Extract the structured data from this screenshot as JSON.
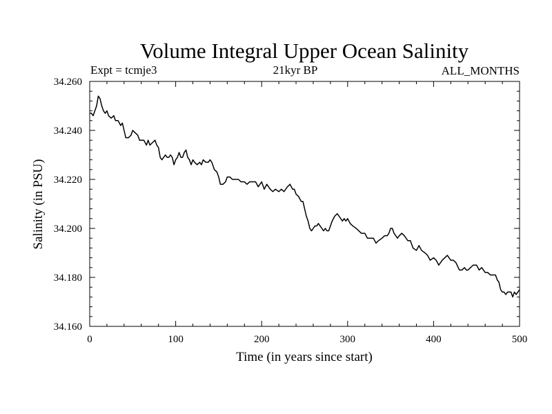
{
  "chart_data": {
    "type": "line",
    "title": "Volume Integral Upper Ocean Salinity",
    "subtitle_left": "Expt = tcmje3",
    "subtitle_center": "21kyr BP",
    "subtitle_right": "ALL_MONTHS",
    "xlabel": "Time (in years since start)",
    "ylabel": "Salinity (in PSU)",
    "xlim": [
      0,
      500
    ],
    "ylim": [
      34.16,
      34.26
    ],
    "xticks": [
      0,
      100,
      200,
      300,
      400,
      500
    ],
    "xtick_labels": [
      "0",
      "100",
      "200",
      "300",
      "400",
      "500"
    ],
    "yticks": [
      34.16,
      34.18,
      34.2,
      34.22,
      34.24,
      34.26
    ],
    "ytick_labels": [
      "34.160",
      "34.180",
      "34.200",
      "34.220",
      "34.240",
      "34.260"
    ],
    "grid": false,
    "line_color": "#000000",
    "series": [
      {
        "x": [
          0,
          2,
          4,
          6,
          8,
          10,
          12,
          14,
          16,
          18,
          20,
          22,
          25,
          28,
          30,
          33,
          36,
          38,
          40,
          42,
          45,
          48,
          50,
          53,
          56,
          58,
          60,
          63,
          66,
          68,
          70,
          73,
          76,
          78,
          80,
          82,
          84,
          86,
          88,
          90,
          92,
          94,
          96,
          98,
          100,
          102,
          104,
          106,
          108,
          110,
          112,
          114,
          116,
          118,
          120,
          122,
          125,
          128,
          130,
          132,
          135,
          138,
          140,
          142,
          145,
          148,
          150,
          152,
          155,
          158,
          160,
          163,
          166,
          170,
          173,
          176,
          180,
          183,
          186,
          190,
          193,
          196,
          200,
          203,
          206,
          210,
          213,
          216,
          220,
          223,
          226,
          230,
          233,
          236,
          238,
          240,
          243,
          246,
          248,
          250,
          252,
          254,
          256,
          258,
          260,
          262,
          264,
          266,
          268,
          270,
          272,
          274,
          276,
          278,
          280,
          282,
          285,
          288,
          290,
          292,
          294,
          296,
          298,
          300,
          303,
          306,
          310,
          313,
          316,
          320,
          323,
          326,
          330,
          333,
          336,
          340,
          343,
          346,
          348,
          350,
          352,
          354,
          356,
          358,
          360,
          363,
          366,
          370,
          373,
          376,
          380,
          383,
          386,
          390,
          393,
          396,
          400,
          403,
          406,
          410,
          413,
          416,
          420,
          423,
          426,
          430,
          433,
          436,
          438,
          440,
          443,
          446,
          450,
          453,
          456,
          460,
          463,
          466,
          470,
          472,
          474,
          476,
          478,
          480,
          482,
          484,
          486,
          488,
          490,
          492,
          494,
          496,
          498,
          500
        ],
        "y": [
          34.247,
          34.247,
          34.246,
          34.248,
          34.25,
          34.254,
          34.253,
          34.25,
          34.248,
          34.247,
          34.248,
          34.246,
          34.245,
          34.246,
          34.244,
          34.244,
          34.242,
          34.243,
          34.24,
          34.237,
          34.237,
          34.238,
          34.24,
          34.239,
          34.238,
          34.236,
          34.236,
          34.236,
          34.234,
          34.236,
          34.234,
          34.235,
          34.236,
          34.234,
          34.233,
          34.229,
          34.228,
          34.229,
          34.23,
          34.229,
          34.229,
          34.23,
          34.229,
          34.226,
          34.228,
          34.229,
          34.231,
          34.229,
          34.229,
          34.231,
          34.232,
          34.229,
          34.228,
          34.226,
          34.228,
          34.227,
          34.226,
          34.227,
          34.226,
          34.228,
          34.227,
          34.227,
          34.228,
          34.227,
          34.224,
          34.223,
          34.221,
          34.218,
          34.218,
          34.219,
          34.221,
          34.221,
          34.22,
          34.22,
          34.22,
          34.219,
          34.219,
          34.218,
          34.219,
          34.219,
          34.219,
          34.217,
          34.219,
          34.216,
          34.218,
          34.216,
          34.215,
          34.216,
          34.215,
          34.216,
          34.215,
          34.217,
          34.218,
          34.216,
          34.216,
          34.214,
          34.213,
          34.211,
          34.211,
          34.208,
          34.205,
          34.203,
          34.2,
          34.199,
          34.2,
          34.201,
          34.201,
          34.202,
          34.201,
          34.2,
          34.199,
          34.2,
          34.199,
          34.199,
          34.201,
          34.203,
          34.205,
          34.206,
          34.205,
          34.204,
          34.203,
          34.204,
          34.203,
          34.204,
          34.202,
          34.201,
          34.2,
          34.199,
          34.198,
          34.198,
          34.196,
          34.196,
          34.196,
          34.194,
          34.195,
          34.196,
          34.197,
          34.197,
          34.198,
          34.2,
          34.2,
          34.198,
          34.197,
          34.196,
          34.197,
          34.198,
          34.197,
          34.195,
          34.195,
          34.192,
          34.191,
          34.193,
          34.191,
          34.19,
          34.189,
          34.187,
          34.188,
          34.187,
          34.185,
          34.187,
          34.188,
          34.189,
          34.187,
          34.187,
          34.186,
          34.183,
          34.183,
          34.184,
          34.183,
          34.183,
          34.184,
          34.185,
          34.185,
          34.183,
          34.184,
          34.182,
          34.182,
          34.181,
          34.181,
          34.181,
          34.179,
          34.178,
          34.175,
          34.174,
          34.174,
          34.173,
          34.174,
          34.174,
          34.174,
          34.172,
          34.174,
          34.173,
          34.174,
          34.175
        ]
      }
    ]
  }
}
